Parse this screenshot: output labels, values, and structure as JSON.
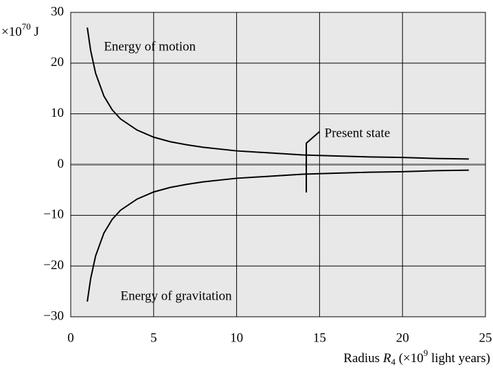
{
  "chart_data": {
    "type": "line",
    "y_label": {
      "base": "×10",
      "exp": "70",
      "unit": " J"
    },
    "x_label": {
      "pre": "Radius ",
      "var": "R",
      "sub": "4",
      "mid": " (×10",
      "exp": "9",
      "post": " light years)"
    },
    "x": [
      1,
      1.2,
      1.5,
      2,
      2.5,
      3,
      4,
      5,
      6,
      7,
      8,
      10,
      12,
      14,
      16,
      18,
      20,
      22,
      24
    ],
    "series": [
      {
        "name": "Energy of motion",
        "color": "#000000",
        "values": [
          27.0,
          22.5,
          18.0,
          13.5,
          10.8,
          9.0,
          6.8,
          5.4,
          4.5,
          3.9,
          3.4,
          2.7,
          2.3,
          1.9,
          1.7,
          1.5,
          1.4,
          1.2,
          1.1
        ]
      },
      {
        "name": "Energy of gravitation",
        "color": "#000000",
        "values": [
          -27.0,
          -22.5,
          -18.0,
          -13.5,
          -10.8,
          -9.0,
          -6.8,
          -5.4,
          -4.5,
          -3.9,
          -3.4,
          -2.7,
          -2.3,
          -1.9,
          -1.7,
          -1.5,
          -1.4,
          -1.2,
          -1.1
        ]
      }
    ],
    "annotations": [
      {
        "text": "Energy of motion",
        "x": 2.0,
        "y": 23.1
      },
      {
        "text": "Energy of gravitation",
        "x": 3.0,
        "y": -26.1
      },
      {
        "text": "Present state",
        "x": 15.3,
        "y": 6.0
      }
    ],
    "present_state": {
      "x": 14.2,
      "y_low": -5.5,
      "y_high": 4.2,
      "x_tip": 15.0,
      "y_tip": 6.5
    },
    "xlim": [
      0,
      25
    ],
    "ylim": [
      -30,
      30
    ],
    "xticks": [
      0,
      5,
      10,
      15,
      20,
      25
    ],
    "yticks": [
      {
        "value": -30,
        "label": "−30"
      },
      {
        "value": -20,
        "label": "−20"
      },
      {
        "value": -10,
        "label": "−10"
      },
      0,
      10,
      20,
      30
    ],
    "grid": true,
    "background": "#e8e8e8"
  }
}
